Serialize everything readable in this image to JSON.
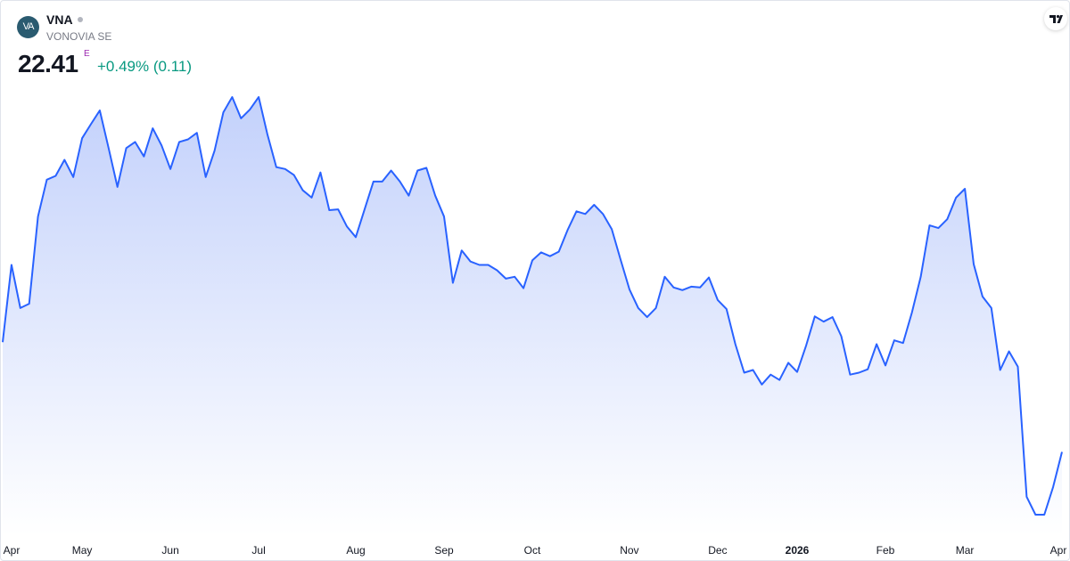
{
  "header": {
    "logo_text": "VA",
    "symbol": "VNA",
    "name": "VONOVIA SE",
    "price": "22.41",
    "flag": "E",
    "change": "+0.49% (0.11)"
  },
  "chart_data": {
    "type": "area",
    "color": "#2962ff",
    "categories": [
      null,
      "Apr",
      null,
      null,
      null,
      null,
      null,
      null,
      null,
      "May",
      null,
      null,
      null,
      null,
      null,
      null,
      null,
      null,
      null,
      "Jun",
      null,
      null,
      null,
      null,
      null,
      null,
      null,
      null,
      null,
      "Jul",
      null,
      null,
      null,
      null,
      null,
      null,
      null,
      null,
      null,
      null,
      "Aug",
      null,
      null,
      null,
      null,
      null,
      null,
      null,
      null,
      null,
      "Sep",
      null,
      null,
      null,
      null,
      null,
      null,
      null,
      null,
      null,
      "Oct",
      null,
      null,
      null,
      null,
      null,
      null,
      null,
      null,
      null,
      null,
      "Nov",
      null,
      null,
      null,
      null,
      null,
      null,
      null,
      null,
      null,
      "Dec",
      null,
      null,
      null,
      null,
      null,
      null,
      null,
      null,
      "2026",
      null,
      null,
      null,
      null,
      null,
      null,
      null,
      null,
      null,
      "Feb",
      null,
      null,
      null,
      null,
      null,
      null,
      null,
      null,
      "Mar",
      null,
      null,
      null,
      null,
      null,
      null,
      null,
      null,
      null,
      null,
      "Apr"
    ],
    "values": [
      25.29,
      27.32,
      26.19,
      26.3,
      28.59,
      29.56,
      29.66,
      30.08,
      29.63,
      30.65,
      31.02,
      31.38,
      30.39,
      29.37,
      30.39,
      30.55,
      30.17,
      30.91,
      30.46,
      29.84,
      30.55,
      30.62,
      30.79,
      29.63,
      30.32,
      31.33,
      31.73,
      31.17,
      31.4,
      31.73,
      30.74,
      29.89,
      29.84,
      29.68,
      29.28,
      29.09,
      29.75,
      28.76,
      28.78,
      28.33,
      28.05,
      28.78,
      29.51,
      29.51,
      29.8,
      29.51,
      29.14,
      29.8,
      29.87,
      29.14,
      28.59,
      26.85,
      27.7,
      27.41,
      27.32,
      27.32,
      27.18,
      26.96,
      27.01,
      26.71,
      27.44,
      27.65,
      27.55,
      27.67,
      28.24,
      28.73,
      28.66,
      28.9,
      28.66,
      28.26,
      27.46,
      26.68,
      26.19,
      25.95,
      26.19,
      27.01,
      26.73,
      26.66,
      26.75,
      26.73,
      26.99,
      26.4,
      26.16,
      25.24,
      24.49,
      24.56,
      24.18,
      24.44,
      24.3,
      24.75,
      24.51,
      25.19,
      25.97,
      25.83,
      25.95,
      25.45,
      24.44,
      24.49,
      24.58,
      25.24,
      24.68,
      25.34,
      25.27,
      26.07,
      27.01,
      28.36,
      28.29,
      28.52,
      29.09,
      29.32,
      27.34,
      26.49,
      26.19,
      24.56,
      25.05,
      24.65,
      21.23,
      20.76,
      20.76,
      21.49,
      22.41
    ],
    "bold_categories": [
      "2026"
    ]
  }
}
